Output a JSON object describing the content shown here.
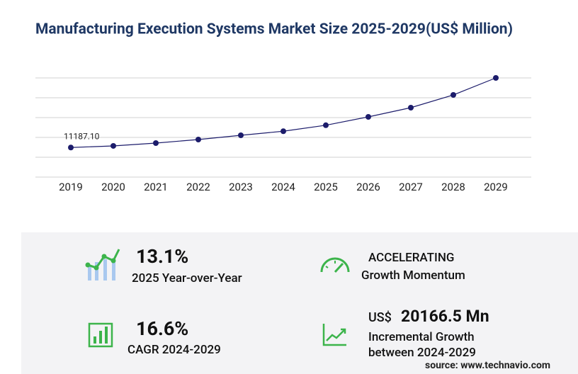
{
  "chart_data": {
    "type": "line",
    "title": "Manufacturing Execution Systems Market Size 2025-2029(US$ Million)",
    "categories": [
      "2019",
      "2020",
      "2021",
      "2022",
      "2023",
      "2024",
      "2025",
      "2026",
      "2027",
      "2028",
      "2029"
    ],
    "values": [
      11187.1,
      11790,
      12860,
      14200,
      15800,
      17340,
      19610,
      22770,
      26250,
      31070,
      37500
    ],
    "value_labels": [
      "11187.10",
      null,
      null,
      null,
      null,
      null,
      null,
      null,
      null,
      null,
      null
    ],
    "color": "#1c1c6b",
    "ylim": [
      0,
      37500
    ],
    "yticks": [
      0,
      7500,
      15000,
      22500,
      30000,
      37500
    ],
    "grid": true,
    "tick_labels": false
  },
  "stats": {
    "yoy": {
      "value": "13.1%",
      "label": "2025 Year-over-Year"
    },
    "momentum": {
      "value": "ACCELERATING",
      "label": "Growth Momentum"
    },
    "cagr": {
      "value": "16.6%",
      "label": "CAGR 2024-2029"
    },
    "incremental": {
      "prefix": "US$",
      "value": "20166.5 Mn",
      "label": "Incremental Growth",
      "label2": "between 2024-2029"
    }
  },
  "source": "source: www.technavio.com"
}
